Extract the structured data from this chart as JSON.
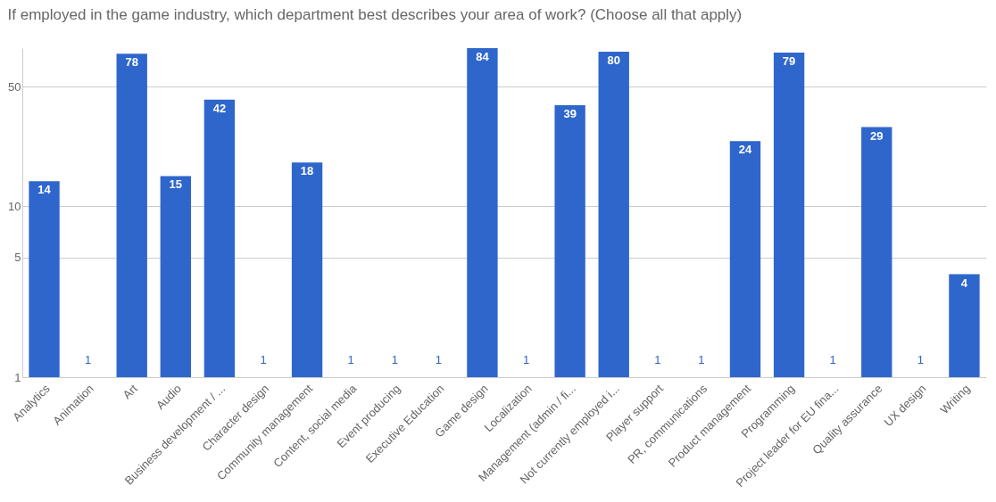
{
  "chart_data": {
    "type": "bar",
    "title": "If employed in the game industry, which department best describes your area of work? (Choose all that apply)",
    "categories": [
      "Analytics",
      "Animation",
      "Art",
      "Audio",
      "Business development / ...",
      "Character design",
      "Community management",
      "Content, social media",
      "Event producing",
      "Executive Education",
      "Game design",
      "Localization",
      "Management (admin / fi...",
      "Not currently employed i...",
      "Player support",
      "PR, communications",
      "Product management",
      "Programming",
      "Project leader for EU fina...",
      "Quality assurance",
      "UX design",
      "Writing"
    ],
    "values": [
      14,
      1,
      78,
      15,
      42,
      1,
      18,
      1,
      1,
      1,
      84,
      1,
      39,
      80,
      1,
      1,
      24,
      79,
      1,
      29,
      1,
      4
    ],
    "color": "#2f66cc",
    "log": true,
    "ylim": [
      1,
      84
    ],
    "yticks": [
      1,
      5,
      10,
      50
    ],
    "grid": "y",
    "data_labels": true
  }
}
